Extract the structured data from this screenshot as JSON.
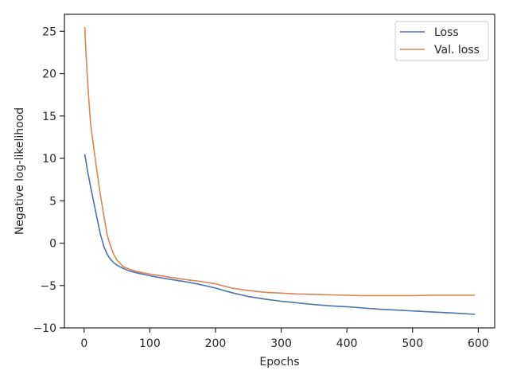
{
  "chart_data": {
    "type": "line",
    "title": "",
    "xlabel": "Epochs",
    "ylabel": "Negative log-likelihood",
    "xlim": [
      -30,
      625
    ],
    "ylim": [
      -10,
      27
    ],
    "xticks": [
      0,
      100,
      200,
      300,
      400,
      500,
      600
    ],
    "yticks": [
      -10,
      -5,
      0,
      5,
      10,
      15,
      20,
      25
    ],
    "grid": false,
    "legend": "top-right",
    "series": [
      {
        "name": "Loss",
        "color": "#4c72b0",
        "x": [
          1,
          5,
          10,
          15,
          20,
          25,
          30,
          35,
          40,
          45,
          50,
          60,
          70,
          80,
          100,
          125,
          150,
          175,
          200,
          225,
          250,
          275,
          300,
          325,
          350,
          375,
          400,
          425,
          450,
          475,
          500,
          525,
          550,
          575,
          595
        ],
        "y": [
          10.5,
          8.6,
          6.6,
          4.7,
          2.8,
          1.0,
          -0.4,
          -1.3,
          -1.9,
          -2.3,
          -2.6,
          -3.0,
          -3.3,
          -3.5,
          -3.85,
          -4.2,
          -4.5,
          -4.85,
          -5.3,
          -5.85,
          -6.3,
          -6.6,
          -6.85,
          -7.05,
          -7.25,
          -7.4,
          -7.5,
          -7.65,
          -7.8,
          -7.9,
          -8.0,
          -8.1,
          -8.2,
          -8.3,
          -8.4
        ]
      },
      {
        "name": "Val. loss",
        "color": "#dd8452",
        "x": [
          1,
          3,
          5,
          8,
          10,
          15,
          20,
          25,
          30,
          35,
          40,
          45,
          50,
          60,
          70,
          80,
          100,
          125,
          150,
          175,
          200,
          225,
          250,
          275,
          300,
          325,
          350,
          375,
          400,
          425,
          450,
          475,
          500,
          525,
          550,
          575,
          595
        ],
        "y": [
          25.5,
          22.0,
          19.5,
          16.0,
          14.0,
          11.0,
          8.2,
          5.6,
          3.2,
          1.0,
          -0.3,
          -1.3,
          -2.0,
          -2.8,
          -3.1,
          -3.35,
          -3.65,
          -3.95,
          -4.25,
          -4.5,
          -4.8,
          -5.3,
          -5.6,
          -5.8,
          -5.9,
          -6.0,
          -6.05,
          -6.1,
          -6.15,
          -6.2,
          -6.2,
          -6.2,
          -6.2,
          -6.15,
          -6.15,
          -6.15,
          -6.15
        ]
      }
    ]
  }
}
